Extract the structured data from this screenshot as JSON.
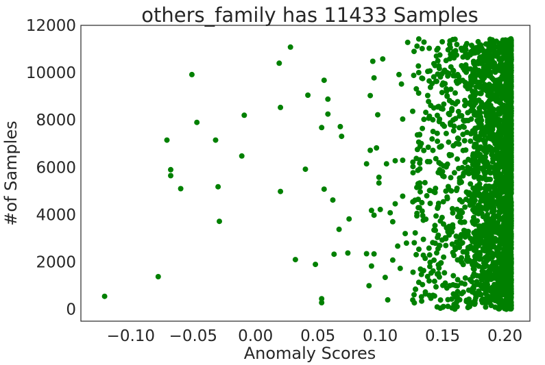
{
  "chart_data": {
    "type": "scatter",
    "title": "others_family has 11433 Samples",
    "xlabel": "Anomaly Scores",
    "ylabel": "#of Samples",
    "xlim": [
      -0.14,
      0.22
    ],
    "ylim": [
      -500,
      12000
    ],
    "xticks": [
      -0.1,
      -0.05,
      0.0,
      0.05,
      0.1,
      0.15,
      0.2
    ],
    "xtick_labels": [
      "−0.10",
      "−0.05",
      "0.00",
      "0.05",
      "0.10",
      "0.15",
      "0.20"
    ],
    "yticks": [
      0,
      2000,
      4000,
      6000,
      8000,
      10000,
      12000
    ],
    "ytick_labels": [
      "0",
      "2000",
      "4000",
      "6000",
      "8000",
      "10000",
      "12000"
    ],
    "grid": false,
    "marker_color": "#008000",
    "n_samples": 11433,
    "x_upper_bound": 0.205,
    "dense_region": {
      "x_range": [
        0.178,
        0.205
      ],
      "y_range": [
        0,
        11433
      ]
    },
    "sparse_points": [
      [
        -0.121,
        550
      ],
      [
        -0.078,
        1380
      ],
      [
        -0.071,
        7150
      ],
      [
        -0.068,
        5900
      ],
      [
        -0.068,
        5650
      ],
      [
        -0.06,
        5100
      ],
      [
        -0.051,
        9920
      ],
      [
        -0.047,
        7900
      ],
      [
        -0.032,
        7150
      ],
      [
        -0.03,
        5180
      ],
      [
        -0.029,
        3720
      ],
      [
        -0.011,
        6480
      ],
      [
        -0.009,
        8200
      ],
      [
        0.019,
        10400
      ],
      [
        0.02,
        8530
      ],
      [
        0.02,
        4980
      ],
      [
        0.028,
        11080
      ],
      [
        0.032,
        2100
      ],
      [
        0.04,
        5920
      ],
      [
        0.042,
        9050
      ],
      [
        0.048,
        1900
      ],
      [
        0.053,
        450
      ],
      [
        0.053,
        280
      ],
      [
        0.053,
        7680
      ],
      [
        0.055,
        9680
      ],
      [
        0.055,
        5080
      ],
      [
        0.058,
        8880
      ],
      [
        0.058,
        8250
      ],
      [
        0.062,
        4620
      ],
      [
        0.063,
        2330
      ],
      [
        0.067,
        3380
      ],
      [
        0.068,
        7720
      ],
      [
        0.069,
        7310
      ],
      [
        0.074,
        2380
      ],
      [
        0.075,
        3820
      ],
      [
        0.089,
        2350
      ],
      [
        0.089,
        6150
      ],
      [
        0.091,
        1000
      ],
      [
        0.092,
        9030
      ],
      [
        0.092,
        6720
      ],
      [
        0.093,
        1830
      ],
      [
        0.093,
        4180
      ],
      [
        0.094,
        10480
      ],
      [
        0.095,
        9780
      ],
      [
        0.095,
        2340
      ],
      [
        0.095,
        3980
      ],
      [
        0.097,
        6820
      ],
      [
        0.098,
        8220
      ],
      [
        0.099,
        5580
      ],
      [
        0.099,
        5340
      ],
      [
        0.1,
        4220
      ],
      [
        0.102,
        10580
      ],
      [
        0.104,
        1350
      ],
      [
        0.105,
        6150
      ],
      [
        0.106,
        400
      ],
      [
        0.108,
        4080
      ],
      [
        0.11,
        3700
      ],
      [
        0.11,
        2080
      ],
      [
        0.112,
        6280
      ],
      [
        0.112,
        4460
      ],
      [
        0.114,
        2670
      ],
      [
        0.115,
        9920
      ],
      [
        0.116,
        1730
      ],
      [
        0.117,
        9520
      ],
      [
        0.118,
        4780
      ],
      [
        0.118,
        6300
      ],
      [
        0.118,
        8040
      ],
      [
        0.12,
        3200
      ],
      [
        0.121,
        2800
      ],
      [
        0.122,
        11280
      ]
    ]
  }
}
